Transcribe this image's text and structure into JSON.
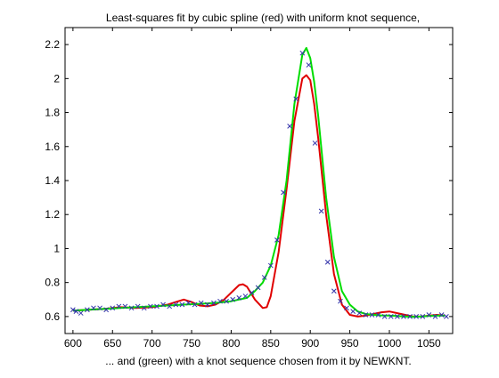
{
  "chart_data": {
    "type": "line",
    "title": "Least-squares fit by cubic spline (red) with uniform knot sequence,",
    "xlabel": "... and (green) with a knot sequence chosen from it by NEWKNT.",
    "ylabel": "",
    "xlim": [
      590,
      1080
    ],
    "ylim": [
      0.5,
      2.3
    ],
    "x_ticks": [
      600,
      650,
      700,
      750,
      800,
      850,
      900,
      950,
      1000,
      1050
    ],
    "y_ticks": [
      0.6,
      0.8,
      1,
      1.2,
      1.4,
      1.6,
      1.8,
      2,
      2.2
    ],
    "x_tick_labels": [
      "600",
      "650",
      "700",
      "750",
      "800",
      "850",
      "900",
      "950",
      "1000",
      "1050"
    ],
    "y_tick_labels": [
      "0.6",
      "0.8",
      "1",
      "1.2",
      "1.4",
      "1.6",
      "1.8",
      "2",
      "2.2"
    ],
    "grid": false,
    "series": [
      {
        "color": "#e00000",
        "style": "line",
        "x": [
          600,
          620,
          640,
          660,
          680,
          700,
          720,
          730,
          740,
          750,
          760,
          770,
          780,
          790,
          800,
          810,
          815,
          820,
          830,
          840,
          845,
          850,
          860,
          870,
          880,
          890,
          895,
          900,
          905,
          910,
          920,
          930,
          940,
          950,
          960,
          970,
          980,
          990,
          1000,
          1010,
          1020,
          1030,
          1040,
          1050,
          1060,
          1070
        ],
        "y": [
          0.635,
          0.64,
          0.645,
          0.655,
          0.65,
          0.655,
          0.67,
          0.685,
          0.7,
          0.685,
          0.665,
          0.66,
          0.67,
          0.695,
          0.74,
          0.785,
          0.79,
          0.775,
          0.7,
          0.65,
          0.655,
          0.72,
          0.98,
          1.35,
          1.75,
          2.0,
          2.02,
          1.99,
          1.85,
          1.65,
          1.2,
          0.85,
          0.67,
          0.61,
          0.6,
          0.605,
          0.615,
          0.625,
          0.63,
          0.62,
          0.61,
          0.6,
          0.6,
          0.605,
          0.61,
          0.605
        ]
      },
      {
        "color": "#00dd00",
        "style": "line",
        "x": [
          600,
          620,
          640,
          660,
          680,
          700,
          720,
          740,
          760,
          780,
          800,
          820,
          830,
          840,
          850,
          860,
          870,
          880,
          890,
          895,
          900,
          905,
          910,
          920,
          930,
          940,
          950,
          960,
          970,
          980,
          990,
          1000,
          1010,
          1020,
          1030,
          1040,
          1050,
          1060,
          1070
        ],
        "y": [
          0.635,
          0.64,
          0.645,
          0.65,
          0.655,
          0.66,
          0.665,
          0.67,
          0.675,
          0.68,
          0.69,
          0.71,
          0.75,
          0.8,
          0.9,
          1.08,
          1.4,
          1.85,
          2.14,
          2.18,
          2.12,
          1.98,
          1.78,
          1.3,
          0.95,
          0.75,
          0.67,
          0.63,
          0.615,
          0.61,
          0.607,
          0.605,
          0.603,
          0.6,
          0.598,
          0.6,
          0.603,
          0.605,
          0.605
        ]
      },
      {
        "color": "#3333aa",
        "style": "markers",
        "marker": "x",
        "x": [
          600,
          604,
          610,
          618,
          626,
          634,
          642,
          650,
          658,
          666,
          674,
          682,
          690,
          698,
          706,
          714,
          722,
          730,
          738,
          746,
          754,
          762,
          770,
          778,
          786,
          794,
          802,
          810,
          818,
          826,
          834,
          842,
          850,
          858,
          866,
          874,
          882,
          890,
          898,
          906,
          914,
          922,
          930,
          938,
          946,
          954,
          962,
          970,
          978,
          986,
          994,
          1002,
          1010,
          1018,
          1026,
          1034,
          1042,
          1050,
          1058,
          1066,
          1072
        ],
        "y": [
          0.64,
          0.63,
          0.62,
          0.64,
          0.65,
          0.65,
          0.64,
          0.65,
          0.66,
          0.66,
          0.65,
          0.66,
          0.65,
          0.66,
          0.66,
          0.67,
          0.66,
          0.67,
          0.67,
          0.68,
          0.67,
          0.68,
          0.67,
          0.68,
          0.69,
          0.69,
          0.7,
          0.71,
          0.72,
          0.74,
          0.77,
          0.83,
          0.9,
          1.05,
          1.33,
          1.72,
          1.88,
          2.15,
          2.08,
          1.62,
          1.22,
          0.92,
          0.75,
          0.69,
          0.65,
          0.63,
          0.62,
          0.61,
          0.61,
          0.61,
          0.6,
          0.6,
          0.6,
          0.6,
          0.6,
          0.6,
          0.6,
          0.61,
          0.6,
          0.61,
          0.6
        ]
      }
    ]
  }
}
